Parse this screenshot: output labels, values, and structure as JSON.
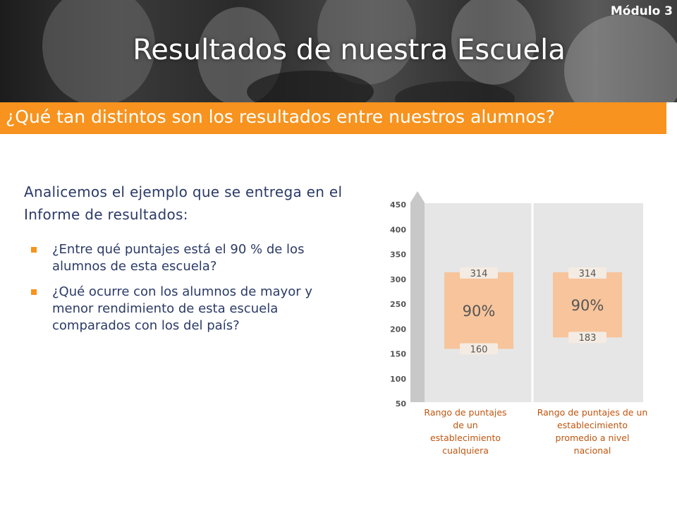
{
  "header": {
    "module": "Módulo 3",
    "title": "Resultados de nuestra Escuela",
    "subtitle": "¿Qué tan distintos son los resultados entre nuestros alumnos?"
  },
  "content": {
    "intro": "Analicemos el ejemplo que se entrega en el Informe de resultados:",
    "bullets": [
      "¿Entre qué puntajes está el 90 % de los alumnos de esta escuela?",
      "¿Qué ocurre con los alumnos de mayor y menor rendimiento de esta escuela comparados con los del país?"
    ]
  },
  "colors": {
    "accent": "#f7931e",
    "text": "#2b3a67",
    "range_fill": "#f7c49b",
    "caption": "#c0550e"
  },
  "chart_data": {
    "type": "bar",
    "subtype": "floating-range",
    "y_ticks": [
      50,
      100,
      150,
      200,
      250,
      300,
      350,
      400,
      450
    ],
    "ylim": [
      50,
      450
    ],
    "grid": false,
    "series": [
      {
        "category": "Rango de puntajes de un establecimiento cualquiera",
        "low": 160,
        "high": 314,
        "label": "90%",
        "low_label": "160",
        "high_label": "314"
      },
      {
        "category": "Rango de puntajes de un establecimiento promedio a nivel nacional",
        "low": 183,
        "high": 314,
        "label": "90%",
        "low_label": "183",
        "high_label": "314"
      }
    ]
  }
}
